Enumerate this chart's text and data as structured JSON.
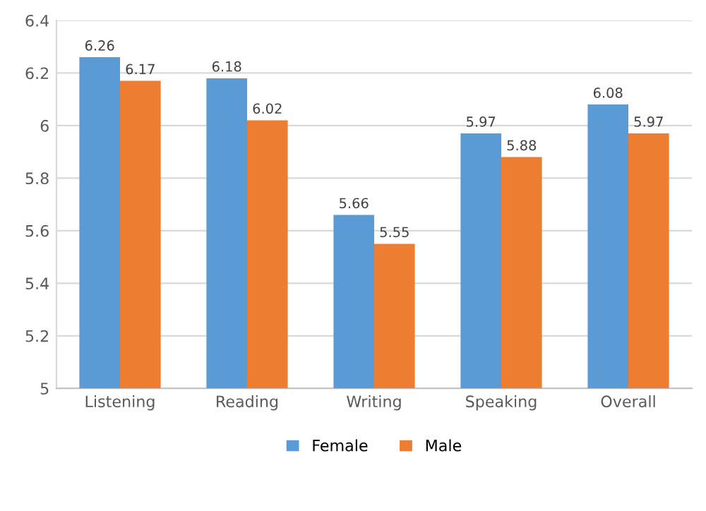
{
  "chart_data": {
    "type": "bar",
    "categories": [
      "Listening",
      "Reading",
      "Writing",
      "Speaking",
      "Overall"
    ],
    "series": [
      {
        "name": "Female",
        "color": "#5b9bd5",
        "values": [
          6.26,
          6.18,
          5.66,
          5.97,
          6.08
        ]
      },
      {
        "name": "Male",
        "color": "#ed7d31",
        "values": [
          6.17,
          6.02,
          5.55,
          5.88,
          5.97
        ]
      }
    ],
    "ylim": [
      5,
      6.4
    ],
    "yticks": [
      5,
      5.2,
      5.4,
      5.6,
      5.8,
      6,
      6.2,
      6.4
    ],
    "grid": "y",
    "legend": "bottom",
    "data_labels": true
  }
}
